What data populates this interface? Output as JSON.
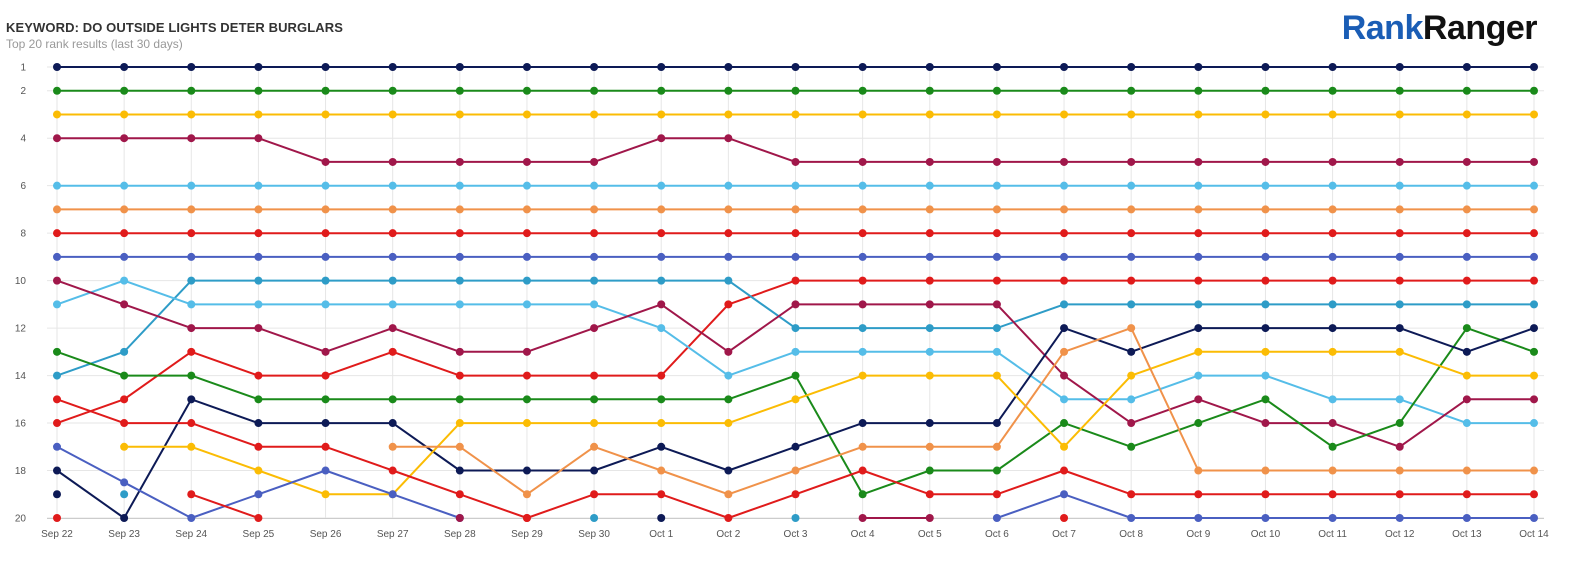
{
  "header": {
    "title": "KEYWORD: DO OUTSIDE LIGHTS DETER BURGLARS",
    "subtitle": "Top 20 rank results (last 30 days)"
  },
  "logo": {
    "part1": "Rank",
    "part2": "Ranger"
  },
  "chart_data": {
    "type": "line",
    "title": "KEYWORD: DO OUTSIDE LIGHTS DETER BURGLARS",
    "subtitle": "Top 20 rank results (last 30 days)",
    "xlabel": "",
    "ylabel": "",
    "y_reversed": true,
    "ylim": [
      1,
      20
    ],
    "y_ticks": [
      1,
      2,
      4,
      6,
      8,
      10,
      12,
      14,
      16,
      18,
      20
    ],
    "grid": true,
    "categories": [
      "Sep 22",
      "Sep 23",
      "Sep 24",
      "Sep 25",
      "Sep 26",
      "Sep 27",
      "Sep 28",
      "Sep 29",
      "Sep 30",
      "Oct 1",
      "Oct 2",
      "Oct 3",
      "Oct 4",
      "Oct 5",
      "Oct 6",
      "Oct 7",
      "Oct 8",
      "Oct 9",
      "Oct 10",
      "Oct 11",
      "Oct 12",
      "Oct 13",
      "Oct 14"
    ],
    "series": [
      {
        "color": "#0d1a56",
        "values": [
          1,
          1,
          1,
          1,
          1,
          1,
          1,
          1,
          1,
          1,
          1,
          1,
          1,
          1,
          1,
          1,
          1,
          1,
          1,
          1,
          1,
          1,
          1
        ]
      },
      {
        "color": "#1a8a1a",
        "values": [
          2,
          2,
          2,
          2,
          2,
          2,
          2,
          2,
          2,
          2,
          2,
          2,
          2,
          2,
          2,
          2,
          2,
          2,
          2,
          2,
          2,
          2,
          2
        ]
      },
      {
        "color": "#fbbc04",
        "values": [
          3,
          3,
          3,
          3,
          3,
          3,
          3,
          3,
          3,
          3,
          3,
          3,
          3,
          3,
          3,
          3,
          3,
          3,
          3,
          3,
          3,
          3,
          3
        ]
      },
      {
        "color": "#a0174a",
        "values": [
          4,
          4,
          4,
          4,
          5,
          5,
          5,
          5,
          5,
          4,
          4,
          5,
          5,
          5,
          5,
          5,
          5,
          5,
          5,
          5,
          5,
          5,
          5
        ]
      },
      {
        "color": "#55bde8",
        "values": [
          6,
          6,
          6,
          6,
          6,
          6,
          6,
          6,
          6,
          6,
          6,
          6,
          6,
          6,
          6,
          6,
          6,
          6,
          6,
          6,
          6,
          6,
          6
        ]
      },
      {
        "color": "#f0924a",
        "values": [
          7,
          7,
          7,
          7,
          7,
          7,
          7,
          7,
          7,
          7,
          7,
          7,
          7,
          7,
          7,
          7,
          7,
          7,
          7,
          7,
          7,
          7,
          7
        ]
      },
      {
        "color": "#e01b1b",
        "values": [
          8,
          8,
          8,
          8,
          8,
          8,
          8,
          8,
          8,
          8,
          8,
          8,
          8,
          8,
          8,
          8,
          8,
          8,
          8,
          8,
          8,
          8,
          8
        ]
      },
      {
        "color": "#4a5fc1",
        "values": [
          9,
          9,
          9,
          9,
          9,
          9,
          9,
          9,
          9,
          9,
          9,
          9,
          9,
          9,
          9,
          9,
          9,
          9,
          9,
          9,
          9,
          9,
          9
        ]
      },
      {
        "color": "#e01b1b",
        "values": [
          16,
          15,
          13,
          14,
          14,
          13,
          14,
          14,
          14,
          14,
          11,
          10,
          10,
          10,
          10,
          10,
          10,
          10,
          10,
          10,
          10,
          10,
          10
        ]
      },
      {
        "color": "#2e9cc7",
        "values": [
          14,
          13,
          10,
          10,
          10,
          10,
          10,
          10,
          10,
          10,
          10,
          12,
          12,
          12,
          12,
          11,
          11,
          11,
          11,
          11,
          11,
          11,
          11
        ]
      },
      {
        "color": "#55bde8",
        "values": [
          11,
          10,
          11,
          11,
          11,
          11,
          11,
          11,
          11,
          12,
          14,
          13,
          13,
          13,
          13,
          15,
          15,
          14,
          14,
          15,
          15,
          16,
          16
        ]
      },
      {
        "color": "#a0174a",
        "values": [
          10,
          11,
          12,
          12,
          13,
          12,
          13,
          13,
          12,
          11,
          13,
          11,
          11,
          11,
          11,
          14,
          16,
          15,
          16,
          16,
          17,
          15,
          15
        ]
      },
      {
        "color": "#1a8a1a",
        "values": [
          13,
          14,
          14,
          15,
          15,
          15,
          15,
          15,
          15,
          15,
          15,
          14,
          19,
          18,
          18,
          16,
          17,
          16,
          15,
          17,
          16,
          12,
          13
        ]
      },
      {
        "color": "#0d1a56",
        "values": [
          18,
          20,
          15,
          16,
          16,
          16,
          18,
          18,
          18,
          17,
          18,
          17,
          16,
          16,
          16,
          12,
          13,
          12,
          12,
          12,
          12,
          13,
          12
        ]
      },
      {
        "color": "#fbbc04",
        "values": [
          null,
          17,
          17,
          18,
          19,
          19,
          16,
          16,
          16,
          16,
          16,
          15,
          14,
          14,
          14,
          17,
          14,
          13,
          13,
          13,
          13,
          14,
          14
        ]
      },
      {
        "color": "#f0924a",
        "values": [
          null,
          null,
          null,
          null,
          null,
          17,
          17,
          19,
          17,
          18,
          19,
          18,
          17,
          17,
          17,
          13,
          12,
          18,
          18,
          18,
          18,
          18,
          18
        ]
      },
      {
        "color": "#e01b1b",
        "values": [
          15,
          16,
          16,
          17,
          17,
          18,
          19,
          20,
          19,
          19,
          20,
          19,
          18,
          19,
          19,
          18,
          19,
          19,
          19,
          19,
          19,
          19,
          19
        ]
      },
      {
        "color": "#4a5fc1",
        "values": [
          17,
          18.5,
          20,
          19,
          18,
          19,
          20,
          null,
          null,
          null,
          null,
          null,
          null,
          null,
          20,
          19,
          20,
          20,
          20,
          20,
          20,
          20,
          20
        ]
      },
      {
        "color": "#2e9cc7",
        "values": [
          null,
          19,
          null,
          null,
          null,
          null,
          null,
          null,
          20,
          null,
          null,
          20,
          null,
          null,
          null,
          null,
          null,
          null,
          null,
          null,
          null,
          null,
          null
        ]
      },
      {
        "color": "#e01b1b",
        "values": [
          20,
          null,
          19,
          20,
          null,
          null,
          null,
          20,
          null,
          null,
          null,
          null,
          null,
          null,
          null,
          20,
          null,
          null,
          null,
          null,
          null,
          null,
          null
        ]
      },
      {
        "color": "#0d1a56",
        "values": [
          19,
          null,
          null,
          null,
          null,
          null,
          null,
          null,
          null,
          20,
          null,
          null,
          null,
          null,
          null,
          null,
          null,
          null,
          null,
          null,
          null,
          null,
          null
        ]
      },
      {
        "color": "#a0174a",
        "values": [
          null,
          null,
          null,
          null,
          null,
          null,
          20,
          null,
          null,
          null,
          null,
          null,
          20,
          20,
          null,
          null,
          null,
          null,
          null,
          null,
          null,
          null,
          null
        ]
      }
    ]
  }
}
